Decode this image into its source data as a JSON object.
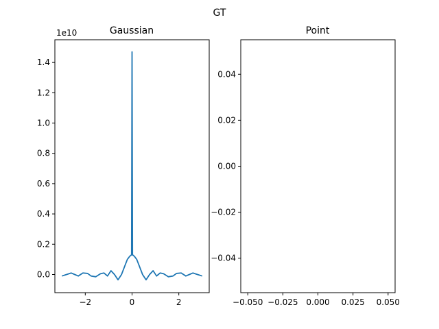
{
  "figure": {
    "suptitle": "GT"
  },
  "colors": {
    "series": "#1f77b4",
    "axes": "#000000",
    "background": "#ffffff"
  },
  "chart_data": [
    {
      "type": "line",
      "title": "Gaussian",
      "xlabel": "",
      "ylabel": "",
      "y_offset_label": "1e10",
      "xlim": [
        -3.3,
        3.3
      ],
      "ylim": [
        -0.12,
        1.55
      ],
      "xticks": [
        -2,
        0,
        2
      ],
      "xtick_labels": [
        "−2",
        "0",
        "2"
      ],
      "yticks": [
        0.0,
        0.2,
        0.4,
        0.6,
        0.8,
        1.0,
        1.2,
        1.4
      ],
      "ytick_labels": [
        "0.0",
        "0.2",
        "0.4",
        "0.6",
        "0.8",
        "1.0",
        "1.2",
        "1.4"
      ],
      "grid": false,
      "series": [
        {
          "x": [
            -3.0,
            -2.8,
            -2.6,
            -2.45,
            -2.3,
            -2.1,
            -1.9,
            -1.75,
            -1.55,
            -1.35,
            -1.2,
            -1.05,
            -0.9,
            -0.75,
            -0.6,
            -0.45,
            -0.3,
            -0.2,
            -0.1,
            -0.02,
            0.0,
            0.02,
            0.1,
            0.2,
            0.3,
            0.45,
            0.6,
            0.75,
            0.9,
            1.05,
            1.2,
            1.35,
            1.55,
            1.75,
            1.9,
            2.1,
            2.3,
            2.45,
            2.6,
            2.8,
            3.0
          ],
          "y": [
            -0.01,
            0.0,
            0.01,
            0.0,
            -0.01,
            0.01,
            0.007,
            -0.01,
            -0.015,
            0.005,
            0.01,
            -0.01,
            0.025,
            0.0,
            -0.035,
            0.0,
            0.06,
            0.1,
            0.12,
            0.13,
            1.47,
            0.13,
            0.12,
            0.1,
            0.06,
            0.0,
            -0.035,
            0.0,
            0.025,
            -0.01,
            0.01,
            0.005,
            -0.015,
            -0.01,
            0.007,
            0.01,
            -0.01,
            0.0,
            0.01,
            0.0,
            -0.01
          ]
        }
      ]
    },
    {
      "type": "scatter",
      "title": "Point",
      "xlabel": "",
      "ylabel": "",
      "xlim": [
        -0.055,
        0.055
      ],
      "ylim": [
        -0.055,
        0.055
      ],
      "xticks": [
        -0.05,
        -0.025,
        0.0,
        0.025,
        0.05
      ],
      "xtick_labels": [
        "−0.050",
        "−0.025",
        "0.000",
        "0.025",
        "0.050"
      ],
      "yticks": [
        -0.04,
        -0.02,
        0.0,
        0.02,
        0.04
      ],
      "ytick_labels": [
        "−0.04",
        "−0.02",
        "0.00",
        "0.02",
        "0.04"
      ],
      "grid": false,
      "series": []
    }
  ]
}
